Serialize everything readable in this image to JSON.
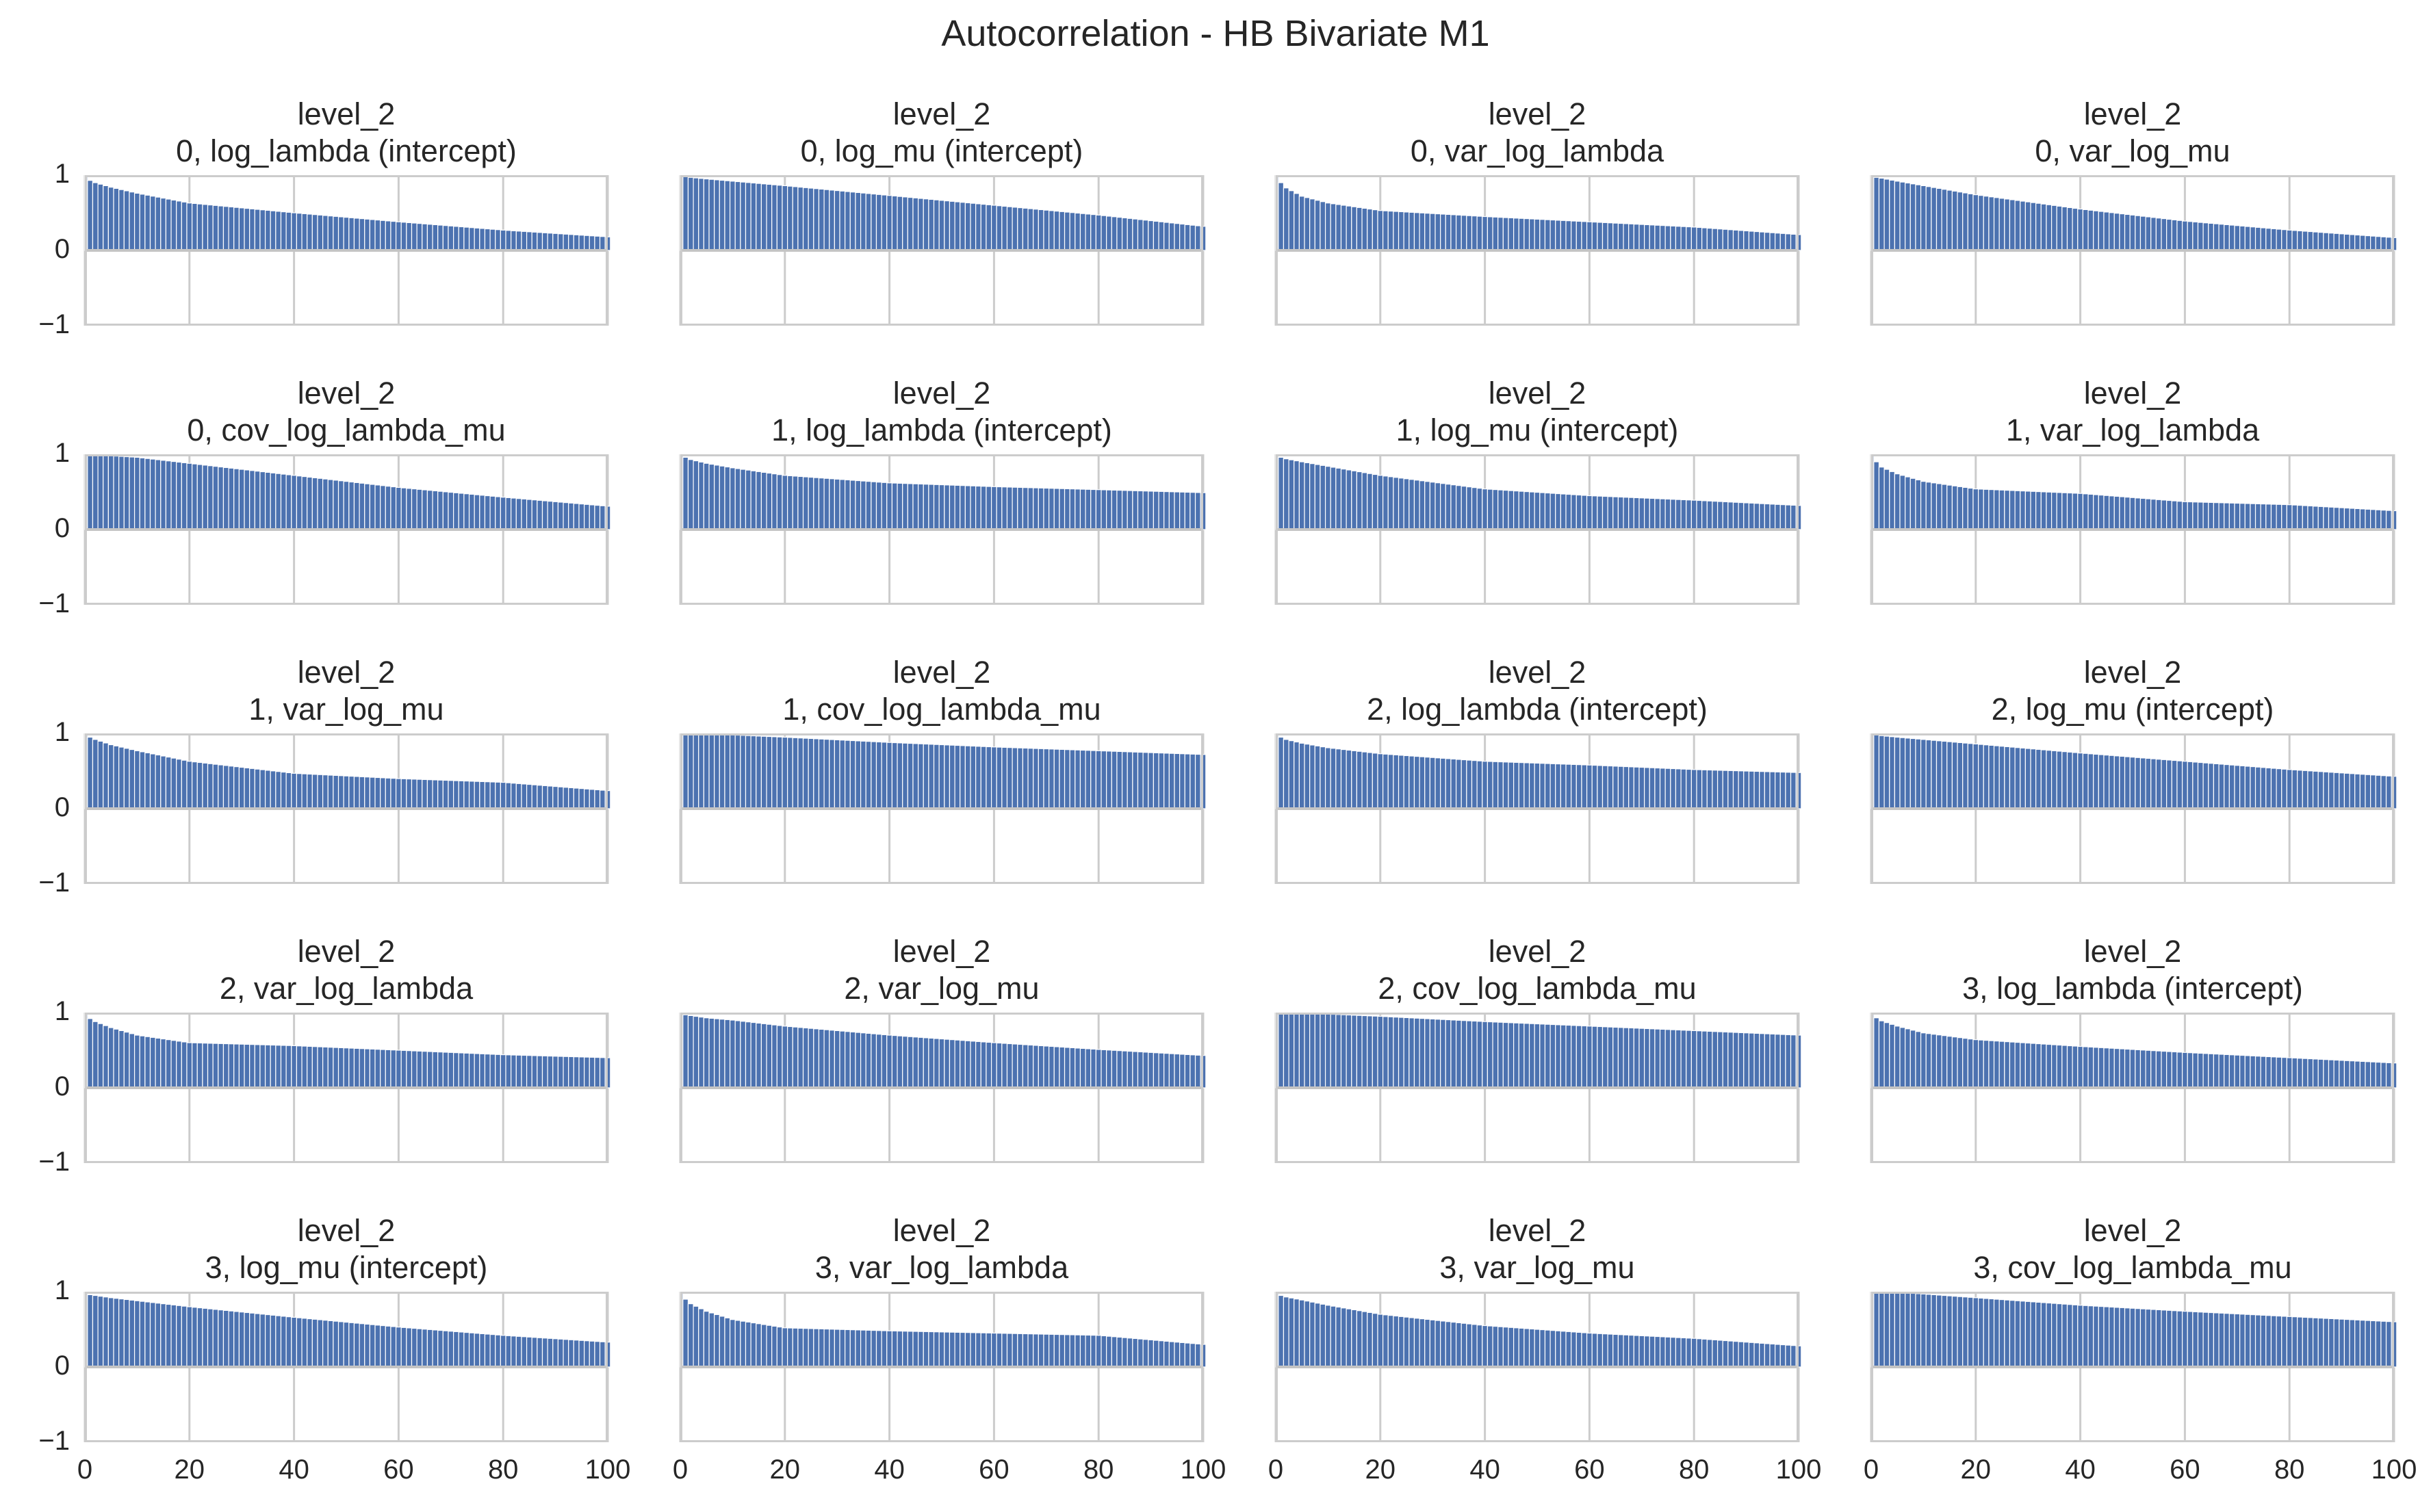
{
  "figure": {
    "title": "Autocorrelation - HB Bivariate M1"
  },
  "colors": {
    "bar": "#4c72b0",
    "grid": "#cccccc",
    "spine": "#cccccc",
    "zero_line": "#c4c4c4",
    "text": "#262626"
  },
  "chart_data": [
    {
      "type": "bar",
      "title": "level_2",
      "subtitle": "0, log_lambda (intercept)",
      "max_lag": 100,
      "xlim": [
        0,
        100
      ],
      "ylim": [
        -1,
        1
      ],
      "xticks": [
        "0",
        "20",
        "40",
        "60",
        "80",
        "100"
      ],
      "yticks": [
        "1",
        "0",
        "−1"
      ],
      "lags": [
        0,
        1,
        2,
        5,
        10,
        20,
        40,
        60,
        80,
        100
      ],
      "values": [
        1.0,
        0.93,
        0.9,
        0.84,
        0.76,
        0.63,
        0.5,
        0.38,
        0.27,
        0.18
      ]
    },
    {
      "type": "bar",
      "title": "level_2",
      "subtitle": "0, log_mu (intercept)",
      "max_lag": 100,
      "xlim": [
        0,
        100
      ],
      "ylim": [
        -1,
        1
      ],
      "xticks": [
        "0",
        "20",
        "40",
        "60",
        "80",
        "100"
      ],
      "yticks": [
        "1",
        "0",
        "−1"
      ],
      "lags": [
        0,
        1,
        2,
        5,
        10,
        20,
        40,
        60,
        80,
        100
      ],
      "values": [
        1.0,
        0.98,
        0.97,
        0.95,
        0.92,
        0.86,
        0.73,
        0.6,
        0.47,
        0.32
      ]
    },
    {
      "type": "bar",
      "title": "level_2",
      "subtitle": "0, var_log_lambda",
      "max_lag": 100,
      "xlim": [
        0,
        100
      ],
      "ylim": [
        -1,
        1
      ],
      "xticks": [
        "0",
        "20",
        "40",
        "60",
        "80",
        "100"
      ],
      "yticks": [
        "1",
        "0",
        "−1"
      ],
      "lags": [
        0,
        1,
        2,
        5,
        10,
        20,
        40,
        60,
        80,
        100
      ],
      "values": [
        1.0,
        0.9,
        0.83,
        0.72,
        0.63,
        0.53,
        0.45,
        0.38,
        0.31,
        0.21
      ]
    },
    {
      "type": "bar",
      "title": "level_2",
      "subtitle": "0, var_log_mu",
      "max_lag": 100,
      "xlim": [
        0,
        100
      ],
      "ylim": [
        -1,
        1
      ],
      "xticks": [
        "0",
        "20",
        "40",
        "60",
        "80",
        "100"
      ],
      "yticks": [
        "1",
        "0",
        "−1"
      ],
      "lags": [
        0,
        1,
        2,
        5,
        10,
        20,
        40,
        60,
        80,
        100
      ],
      "values": [
        1.0,
        0.97,
        0.96,
        0.92,
        0.86,
        0.74,
        0.55,
        0.39,
        0.27,
        0.17
      ]
    },
    {
      "type": "bar",
      "title": "level_2",
      "subtitle": "0, cov_log_lambda_mu",
      "max_lag": 100,
      "xlim": [
        0,
        100
      ],
      "ylim": [
        -1,
        1
      ],
      "xticks": [
        "0",
        "20",
        "40",
        "60",
        "80",
        "100"
      ],
      "yticks": [
        "1",
        "0",
        "−1"
      ],
      "lags": [
        0,
        1,
        2,
        5,
        10,
        20,
        40,
        60,
        80,
        100
      ],
      "values": [
        1.0,
        1.0,
        0.99,
        0.98,
        0.96,
        0.88,
        0.72,
        0.56,
        0.43,
        0.31
      ]
    },
    {
      "type": "bar",
      "title": "level_2",
      "subtitle": "1, log_lambda (intercept)",
      "max_lag": 100,
      "xlim": [
        0,
        100
      ],
      "ylim": [
        -1,
        1
      ],
      "xticks": [
        "0",
        "20",
        "40",
        "60",
        "80",
        "100"
      ],
      "yticks": [
        "1",
        "0",
        "−1"
      ],
      "lags": [
        0,
        1,
        2,
        5,
        10,
        20,
        40,
        60,
        80,
        100
      ],
      "values": [
        1.0,
        0.96,
        0.93,
        0.88,
        0.82,
        0.72,
        0.62,
        0.57,
        0.53,
        0.49
      ]
    },
    {
      "type": "bar",
      "title": "level_2",
      "subtitle": "1, log_mu (intercept)",
      "max_lag": 100,
      "xlim": [
        0,
        100
      ],
      "ylim": [
        -1,
        1
      ],
      "xticks": [
        "0",
        "20",
        "40",
        "60",
        "80",
        "100"
      ],
      "yticks": [
        "1",
        "0",
        "−1"
      ],
      "lags": [
        0,
        1,
        2,
        5,
        10,
        20,
        40,
        60,
        80,
        100
      ],
      "values": [
        1.0,
        0.96,
        0.94,
        0.9,
        0.84,
        0.72,
        0.54,
        0.45,
        0.39,
        0.32
      ]
    },
    {
      "type": "bar",
      "title": "level_2",
      "subtitle": "1, var_log_lambda",
      "max_lag": 100,
      "xlim": [
        0,
        100
      ],
      "ylim": [
        -1,
        1
      ],
      "xticks": [
        "0",
        "20",
        "40",
        "60",
        "80",
        "100"
      ],
      "yticks": [
        "1",
        "0",
        "−1"
      ],
      "lags": [
        0,
        1,
        2,
        5,
        10,
        20,
        40,
        60,
        80,
        100
      ],
      "values": [
        1.0,
        0.9,
        0.83,
        0.74,
        0.64,
        0.54,
        0.48,
        0.37,
        0.33,
        0.25
      ]
    },
    {
      "type": "bar",
      "title": "level_2",
      "subtitle": "1, var_log_mu",
      "max_lag": 100,
      "xlim": [
        0,
        100
      ],
      "ylim": [
        -1,
        1
      ],
      "xticks": [
        "0",
        "20",
        "40",
        "60",
        "80",
        "100"
      ],
      "yticks": [
        "1",
        "0",
        "−1"
      ],
      "lags": [
        0,
        1,
        2,
        5,
        10,
        20,
        40,
        60,
        80,
        100
      ],
      "values": [
        1.0,
        0.95,
        0.92,
        0.85,
        0.77,
        0.63,
        0.47,
        0.4,
        0.35,
        0.24
      ]
    },
    {
      "type": "bar",
      "title": "level_2",
      "subtitle": "1, cov_log_lambda_mu",
      "max_lag": 100,
      "xlim": [
        0,
        100
      ],
      "ylim": [
        -1,
        1
      ],
      "xticks": [
        "0",
        "20",
        "40",
        "60",
        "80",
        "100"
      ],
      "yticks": [
        "1",
        "0",
        "−1"
      ],
      "lags": [
        0,
        1,
        2,
        5,
        10,
        20,
        40,
        60,
        80,
        100
      ],
      "values": [
        1.0,
        1.0,
        1.0,
        1.0,
        0.98,
        0.95,
        0.88,
        0.82,
        0.77,
        0.72
      ]
    },
    {
      "type": "bar",
      "title": "level_2",
      "subtitle": "2, log_lambda (intercept)",
      "max_lag": 100,
      "xlim": [
        0,
        100
      ],
      "ylim": [
        -1,
        1
      ],
      "xticks": [
        "0",
        "20",
        "40",
        "60",
        "80",
        "100"
      ],
      "yticks": [
        "1",
        "0",
        "−1"
      ],
      "lags": [
        0,
        1,
        2,
        5,
        10,
        20,
        40,
        60,
        80,
        100
      ],
      "values": [
        1.0,
        0.95,
        0.92,
        0.87,
        0.81,
        0.73,
        0.63,
        0.58,
        0.52,
        0.48
      ]
    },
    {
      "type": "bar",
      "title": "level_2",
      "subtitle": "2, log_mu (intercept)",
      "max_lag": 100,
      "xlim": [
        0,
        100
      ],
      "ylim": [
        -1,
        1
      ],
      "xticks": [
        "0",
        "20",
        "40",
        "60",
        "80",
        "100"
      ],
      "yticks": [
        "1",
        "0",
        "−1"
      ],
      "lags": [
        0,
        1,
        2,
        5,
        10,
        20,
        40,
        60,
        80,
        100
      ],
      "values": [
        1.0,
        0.98,
        0.97,
        0.95,
        0.92,
        0.86,
        0.74,
        0.63,
        0.52,
        0.43
      ]
    },
    {
      "type": "bar",
      "title": "level_2",
      "subtitle": "2, var_log_lambda",
      "max_lag": 100,
      "xlim": [
        0,
        100
      ],
      "ylim": [
        -1,
        1
      ],
      "xticks": [
        "0",
        "20",
        "40",
        "60",
        "80",
        "100"
      ],
      "yticks": [
        "1",
        "0",
        "−1"
      ],
      "lags": [
        0,
        1,
        2,
        5,
        10,
        20,
        40,
        60,
        80,
        100
      ],
      "values": [
        1.0,
        0.92,
        0.88,
        0.8,
        0.7,
        0.6,
        0.56,
        0.5,
        0.44,
        0.4
      ]
    },
    {
      "type": "bar",
      "title": "level_2",
      "subtitle": "2, var_log_mu",
      "max_lag": 100,
      "xlim": [
        0,
        100
      ],
      "ylim": [
        -1,
        1
      ],
      "xticks": [
        "0",
        "20",
        "40",
        "60",
        "80",
        "100"
      ],
      "yticks": [
        "1",
        "0",
        "−1"
      ],
      "lags": [
        0,
        1,
        2,
        5,
        10,
        20,
        40,
        60,
        80,
        100
      ],
      "values": [
        1.0,
        0.97,
        0.96,
        0.93,
        0.9,
        0.82,
        0.7,
        0.6,
        0.51,
        0.43
      ]
    },
    {
      "type": "bar",
      "title": "level_2",
      "subtitle": "2, cov_log_lambda_mu",
      "max_lag": 100,
      "xlim": [
        0,
        100
      ],
      "ylim": [
        -1,
        1
      ],
      "xticks": [
        "0",
        "20",
        "40",
        "60",
        "80",
        "100"
      ],
      "yticks": [
        "1",
        "0",
        "−1"
      ],
      "lags": [
        0,
        1,
        2,
        5,
        10,
        20,
        40,
        60,
        80,
        100
      ],
      "values": [
        1.0,
        1.0,
        1.0,
        0.99,
        0.98,
        0.95,
        0.88,
        0.82,
        0.76,
        0.7
      ]
    },
    {
      "type": "bar",
      "title": "level_2",
      "subtitle": "3, log_lambda (intercept)",
      "max_lag": 100,
      "xlim": [
        0,
        100
      ],
      "ylim": [
        -1,
        1
      ],
      "xticks": [
        "0",
        "20",
        "40",
        "60",
        "80",
        "100"
      ],
      "yticks": [
        "1",
        "0",
        "−1"
      ],
      "lags": [
        0,
        1,
        2,
        5,
        10,
        20,
        40,
        60,
        80,
        100
      ],
      "values": [
        1.0,
        0.93,
        0.89,
        0.82,
        0.73,
        0.64,
        0.55,
        0.47,
        0.4,
        0.33
      ]
    },
    {
      "type": "bar",
      "title": "level_2",
      "subtitle": "3, log_mu (intercept)",
      "max_lag": 100,
      "xlim": [
        0,
        100
      ],
      "ylim": [
        -1,
        1
      ],
      "xticks": [
        "0",
        "20",
        "40",
        "60",
        "80",
        "100"
      ],
      "yticks": [
        "1",
        "0",
        "−1"
      ],
      "lags": [
        0,
        1,
        2,
        5,
        10,
        20,
        40,
        60,
        80,
        100
      ],
      "values": [
        1.0,
        0.96,
        0.95,
        0.92,
        0.88,
        0.8,
        0.66,
        0.53,
        0.42,
        0.33
      ]
    },
    {
      "type": "bar",
      "title": "level_2",
      "subtitle": "3, var_log_lambda",
      "max_lag": 100,
      "xlim": [
        0,
        100
      ],
      "ylim": [
        -1,
        1
      ],
      "xticks": [
        "0",
        "20",
        "40",
        "60",
        "80",
        "100"
      ],
      "yticks": [
        "1",
        "0",
        "−1"
      ],
      "lags": [
        0,
        1,
        2,
        5,
        10,
        20,
        40,
        60,
        80,
        100
      ],
      "values": [
        1.0,
        0.9,
        0.84,
        0.74,
        0.63,
        0.52,
        0.48,
        0.45,
        0.42,
        0.3
      ]
    },
    {
      "type": "bar",
      "title": "level_2",
      "subtitle": "3, var_log_mu",
      "max_lag": 100,
      "xlim": [
        0,
        100
      ],
      "ylim": [
        -1,
        1
      ],
      "xticks": [
        "0",
        "20",
        "40",
        "60",
        "80",
        "100"
      ],
      "yticks": [
        "1",
        "0",
        "−1"
      ],
      "lags": [
        0,
        1,
        2,
        5,
        10,
        20,
        40,
        60,
        80,
        100
      ],
      "values": [
        1.0,
        0.95,
        0.93,
        0.89,
        0.82,
        0.7,
        0.55,
        0.45,
        0.38,
        0.28
      ]
    },
    {
      "type": "bar",
      "title": "level_2",
      "subtitle": "3, cov_log_lambda_mu",
      "max_lag": 100,
      "xlim": [
        0,
        100
      ],
      "ylim": [
        -1,
        1
      ],
      "xticks": [
        "0",
        "20",
        "40",
        "60",
        "80",
        "100"
      ],
      "yticks": [
        "1",
        "0",
        "−1"
      ],
      "lags": [
        0,
        1,
        2,
        5,
        10,
        20,
        40,
        60,
        80,
        100
      ],
      "values": [
        1.0,
        1.0,
        1.0,
        0.99,
        0.97,
        0.92,
        0.82,
        0.74,
        0.67,
        0.6
      ]
    }
  ]
}
